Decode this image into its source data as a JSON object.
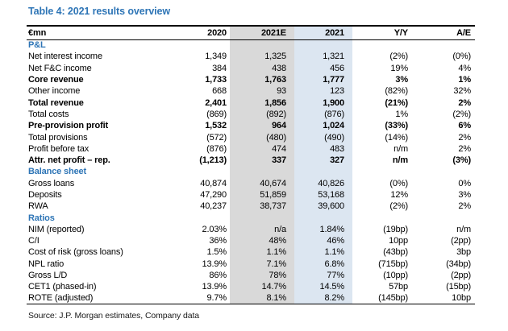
{
  "title": "Table 4: 2021 results overview",
  "source": "Source: J.P. Morgan estimates, Company data",
  "colors": {
    "title_blue": "#2e75b6",
    "section_blue": "#2e75b6",
    "estimate_column_bg": "#d9d9d9",
    "actual_column_bg": "#dce6f1"
  },
  "chart_data": {
    "type": "table",
    "title": "Table 4: 2021 results overview",
    "unit_header": "€mn",
    "columns": [
      "€mn",
      "2020",
      "2021E",
      "2021",
      "Y/Y",
      "A/E"
    ],
    "sections": [
      "P&L",
      "Balance sheet",
      "Ratios"
    ]
  },
  "table": {
    "columns": [
      "€mn",
      "2020",
      "2021E",
      "2021",
      "Y/Y",
      "A/E"
    ],
    "rows": [
      {
        "type": "section",
        "label": "P&L"
      },
      {
        "type": "data",
        "bold": false,
        "label": "Net interest income",
        "values": [
          "1,349",
          "1,325",
          "1,321",
          "(2%)",
          "(0%)"
        ]
      },
      {
        "type": "data",
        "bold": false,
        "label": "Net F&C income",
        "values": [
          "384",
          "438",
          "456",
          "19%",
          "4%"
        ]
      },
      {
        "type": "data",
        "bold": true,
        "label": "Core revenue",
        "values": [
          "1,733",
          "1,763",
          "1,777",
          "3%",
          "1%"
        ]
      },
      {
        "type": "data",
        "bold": false,
        "label": "Other income",
        "values": [
          "668",
          "93",
          "123",
          "(82%)",
          "32%"
        ]
      },
      {
        "type": "data",
        "bold": true,
        "label": "Total revenue",
        "values": [
          "2,401",
          "1,856",
          "1,900",
          "(21%)",
          "2%"
        ]
      },
      {
        "type": "data",
        "bold": false,
        "label": "Total costs",
        "values": [
          "(869)",
          "(892)",
          "(876)",
          "1%",
          "(2%)"
        ]
      },
      {
        "type": "data",
        "bold": true,
        "label": "Pre-provision profit",
        "values": [
          "1,532",
          "964",
          "1,024",
          "(33%)",
          "6%"
        ]
      },
      {
        "type": "data",
        "bold": false,
        "label": "Total provisions",
        "values": [
          "(572)",
          "(480)",
          "(490)",
          "(14%)",
          "2%"
        ]
      },
      {
        "type": "data",
        "bold": false,
        "label": "Profit before tax",
        "values": [
          "(876)",
          "474",
          "483",
          "n/m",
          "2%"
        ]
      },
      {
        "type": "data",
        "bold": true,
        "label": "Attr. net profit – rep.",
        "values": [
          "(1,213)",
          "337",
          "327",
          "n/m",
          "(3%)"
        ]
      },
      {
        "type": "section",
        "label": "Balance sheet"
      },
      {
        "type": "data",
        "bold": false,
        "label": "Gross loans",
        "values": [
          "40,874",
          "40,674",
          "40,826",
          "(0%)",
          "0%"
        ]
      },
      {
        "type": "data",
        "bold": false,
        "label": "Deposits",
        "values": [
          "47,290",
          "51,859",
          "53,168",
          "12%",
          "3%"
        ]
      },
      {
        "type": "data",
        "bold": false,
        "label": "RWA",
        "values": [
          "40,237",
          "38,737",
          "39,600",
          "(2%)",
          "2%"
        ]
      },
      {
        "type": "section",
        "label": "Ratios"
      },
      {
        "type": "data",
        "bold": false,
        "label": "NIM (reported)",
        "values": [
          "2.03%",
          "n/a",
          "1.84%",
          "(19bp)",
          "n/m"
        ]
      },
      {
        "type": "data",
        "bold": false,
        "label": "C/I",
        "values": [
          "36%",
          "48%",
          "46%",
          "10pp",
          "(2pp)"
        ]
      },
      {
        "type": "data",
        "bold": false,
        "label": "Cost of risk (gross loans)",
        "values": [
          "1.5%",
          "1.1%",
          "1.1%",
          "(43bp)",
          "3bp"
        ]
      },
      {
        "type": "data",
        "bold": false,
        "label": "NPL ratio",
        "values": [
          "13.9%",
          "7.1%",
          "6.8%",
          "(715bp)",
          "(34bp)"
        ]
      },
      {
        "type": "data",
        "bold": false,
        "label": "Gross L/D",
        "values": [
          "86%",
          "78%",
          "77%",
          "(10pp)",
          "(2pp)"
        ]
      },
      {
        "type": "data",
        "bold": false,
        "label": "CET1 (phased-in)",
        "values": [
          "13.9%",
          "14.7%",
          "14.5%",
          "57bp",
          "(15bp)"
        ]
      },
      {
        "type": "data",
        "bold": false,
        "label": "ROTE (adjusted)",
        "values": [
          "9.7%",
          "8.1%",
          "8.2%",
          "(145bp)",
          "10bp"
        ]
      }
    ]
  }
}
